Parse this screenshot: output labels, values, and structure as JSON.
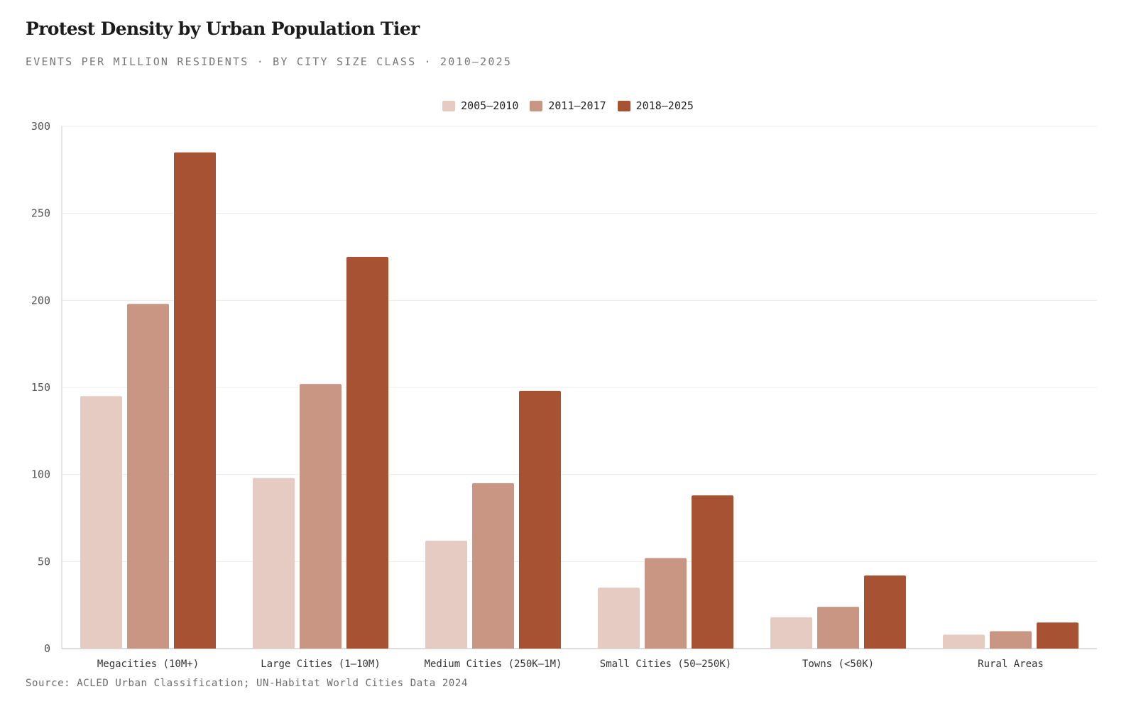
{
  "header": {
    "title": "Protest Density by Urban Population Tier",
    "subtitle": "EVENTS PER MILLION RESIDENTS · BY CITY SIZE CLASS · 2010–2025"
  },
  "footer": {
    "source": "Source: ACLED Urban Classification; UN-Habitat World Cities Data 2024"
  },
  "chart_data": {
    "type": "bar",
    "title": "Protest Density by Urban Population Tier",
    "subtitle": "EVENTS PER MILLION RESIDENTS · BY CITY SIZE CLASS · 2010–2025",
    "xlabel": "",
    "ylabel": "",
    "ylim": [
      0,
      300
    ],
    "yticks": [
      0,
      50,
      100,
      150,
      200,
      250,
      300
    ],
    "grid": true,
    "legend_position": "top-center",
    "categories": [
      "Megacities (10M+)",
      "Large Cities (1–10M)",
      "Medium Cities (250K–1M)",
      "Small Cities (50–250K)",
      "Towns (<50K)",
      "Rural Areas"
    ],
    "series": [
      {
        "name": "2005–2010",
        "color": "#e6cbc3",
        "values": [
          145,
          98,
          62,
          35,
          18,
          8
        ]
      },
      {
        "name": "2011–2017",
        "color": "#c99684",
        "values": [
          198,
          152,
          95,
          52,
          24,
          10
        ]
      },
      {
        "name": "2018–2025",
        "color": "#a85234",
        "values": [
          285,
          225,
          148,
          88,
          42,
          15
        ]
      }
    ]
  }
}
